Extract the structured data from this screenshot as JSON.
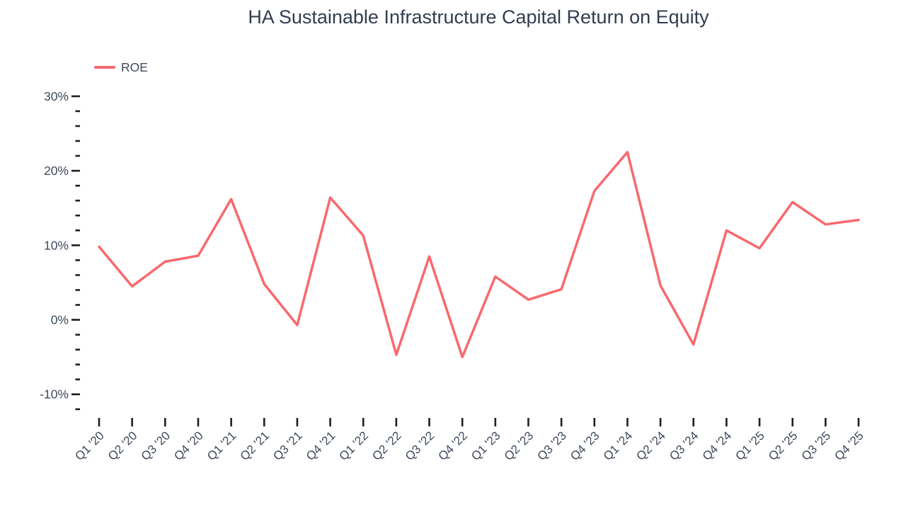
{
  "title": "HA Sustainable Infrastructure Capital Return on Equity",
  "legend": {
    "label": "ROE",
    "swatch_color": "#f8696d"
  },
  "colors": {
    "line": "#f8696d",
    "title_text": "#333d4f",
    "axis_label_text": "#3f4a5c",
    "tick_mark": "#1f1f1f",
    "background": "#ffffff"
  },
  "chart_data": {
    "type": "line",
    "title": "HA Sustainable Infrastructure Capital Return on Equity",
    "categories": [
      "Q1 '20",
      "Q2 '20",
      "Q3 '20",
      "Q4 '20",
      "Q1 '21",
      "Q2 '21",
      "Q3 '21",
      "Q4 '21",
      "Q1 '22",
      "Q2 '22",
      "Q3 '22",
      "Q4 '22",
      "Q1 '23",
      "Q2 '23",
      "Q3 '23",
      "Q4 '23",
      "Q1 '24",
      "Q2 '24",
      "Q3 '24",
      "Q4 '24",
      "Q1 '25",
      "Q2 '25",
      "Q3 '25",
      "Q4 '25"
    ],
    "series": [
      {
        "name": "ROE",
        "color": "#f8696d",
        "values": [
          9.8,
          4.5,
          7.8,
          8.6,
          16.2,
          4.8,
          -0.7,
          16.4,
          11.3,
          -4.7,
          8.5,
          -5.0,
          5.8,
          2.7,
          4.1,
          17.3,
          22.5,
          4.6,
          -3.3,
          12.0,
          9.6,
          15.8,
          12.8,
          13.4
        ]
      }
    ],
    "xlabel": "",
    "ylabel": "",
    "unit": "%",
    "y_axis": {
      "major_tick_values": [
        30,
        20,
        10,
        0,
        -10
      ],
      "major_tick_labels": [
        "30%",
        "20%",
        "10%",
        "0%",
        "-10%"
      ],
      "minor_tick_step": 2,
      "range_top": 30,
      "range_bottom": -12
    },
    "x_axis": {
      "label_rotation_deg": -45
    },
    "legend_position": "top-left",
    "grid": false
  }
}
